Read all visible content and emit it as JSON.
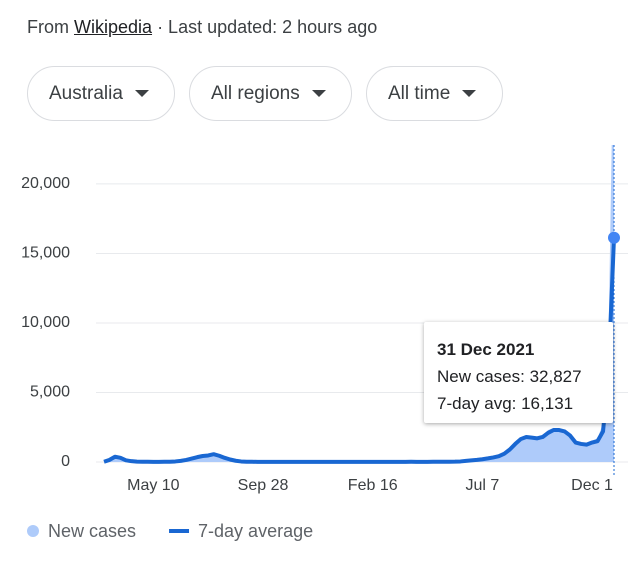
{
  "header": {
    "from": "From",
    "source": "Wikipedia",
    "updated": "· Last updated: 2 hours ago"
  },
  "filters": [
    "Australia",
    "All regions",
    "All time"
  ],
  "chart_data": {
    "type": "line",
    "categories": [
      null,
      null,
      null,
      null,
      null,
      null,
      null,
      null,
      null,
      "May 10",
      null,
      null,
      null,
      null,
      null,
      null,
      null,
      null,
      null,
      null,
      null,
      null,
      null,
      null,
      null,
      null,
      null,
      null,
      null,
      "Sep 28",
      null,
      null,
      null,
      null,
      null,
      null,
      null,
      null,
      null,
      null,
      null,
      null,
      null,
      null,
      null,
      null,
      null,
      null,
      null,
      "Feb 16",
      null,
      null,
      null,
      null,
      null,
      null,
      null,
      null,
      null,
      null,
      null,
      null,
      null,
      null,
      null,
      null,
      null,
      null,
      null,
      "Jul 7",
      null,
      null,
      null,
      null,
      null,
      null,
      null,
      null,
      null,
      null,
      null,
      null,
      null,
      null,
      null,
      null,
      null,
      null,
      null,
      "Dec 1",
      null,
      null,
      null,
      null
    ],
    "series": [
      {
        "name": "New cases",
        "type": "area",
        "color": "#aecbfa",
        "values": [
          30,
          250,
          420,
          260,
          100,
          50,
          25,
          18,
          14,
          10,
          12,
          18,
          25,
          50,
          100,
          180,
          290,
          380,
          460,
          500,
          620,
          420,
          270,
          150,
          70,
          35,
          18,
          14,
          11,
          9,
          11,
          9,
          14,
          9,
          7,
          9,
          11,
          10,
          13,
          9,
          11,
          13,
          9,
          7,
          9,
          11,
          13,
          9,
          11,
          10,
          11,
          13,
          11,
          9,
          11,
          13,
          17,
          11,
          13,
          12,
          15,
          17,
          20,
          22,
          30,
          50,
          95,
          130,
          160,
          220,
          290,
          360,
          480,
          700,
          1050,
          1450,
          1750,
          1850,
          1700,
          1750,
          1950,
          2300,
          2450,
          2350,
          2150,
          1750,
          1350,
          1300,
          1300,
          1550,
          1700,
          2800,
          9000,
          32827
        ]
      },
      {
        "name": "7-day average",
        "type": "line",
        "color": "#1967d2",
        "values": [
          20,
          150,
          380,
          300,
          120,
          60,
          30,
          20,
          15,
          12,
          12,
          15,
          20,
          40,
          80,
          150,
          250,
          350,
          430,
          470,
          560,
          450,
          300,
          180,
          90,
          40,
          20,
          15,
          12,
          10,
          10,
          10,
          12,
          10,
          8,
          8,
          10,
          10,
          12,
          10,
          10,
          12,
          10,
          8,
          8,
          10,
          12,
          10,
          10,
          10,
          10,
          12,
          12,
          10,
          10,
          12,
          15,
          12,
          12,
          12,
          14,
          15,
          18,
          20,
          25,
          40,
          80,
          120,
          150,
          200,
          260,
          330,
          420,
          600,
          900,
          1300,
          1650,
          1800,
          1750,
          1700,
          1800,
          2100,
          2300,
          2300,
          2200,
          1900,
          1400,
          1300,
          1250,
          1400,
          1500,
          2200,
          6500,
          16131
        ]
      }
    ],
    "ylim": [
      0,
      22800
    ],
    "yticks": [
      0,
      {
        "value": 5000,
        "label": "5,000"
      },
      {
        "value": 10000,
        "label": "10,000"
      },
      {
        "value": 15000,
        "label": "15,000"
      },
      {
        "value": 20000,
        "label": "20,000"
      }
    ],
    "grid": true,
    "legend": "bottom",
    "tooltip": {
      "title": "31 Dec 2021",
      "lines": [
        "New cases: 32,827",
        "7-day avg: 16,131"
      ]
    }
  }
}
